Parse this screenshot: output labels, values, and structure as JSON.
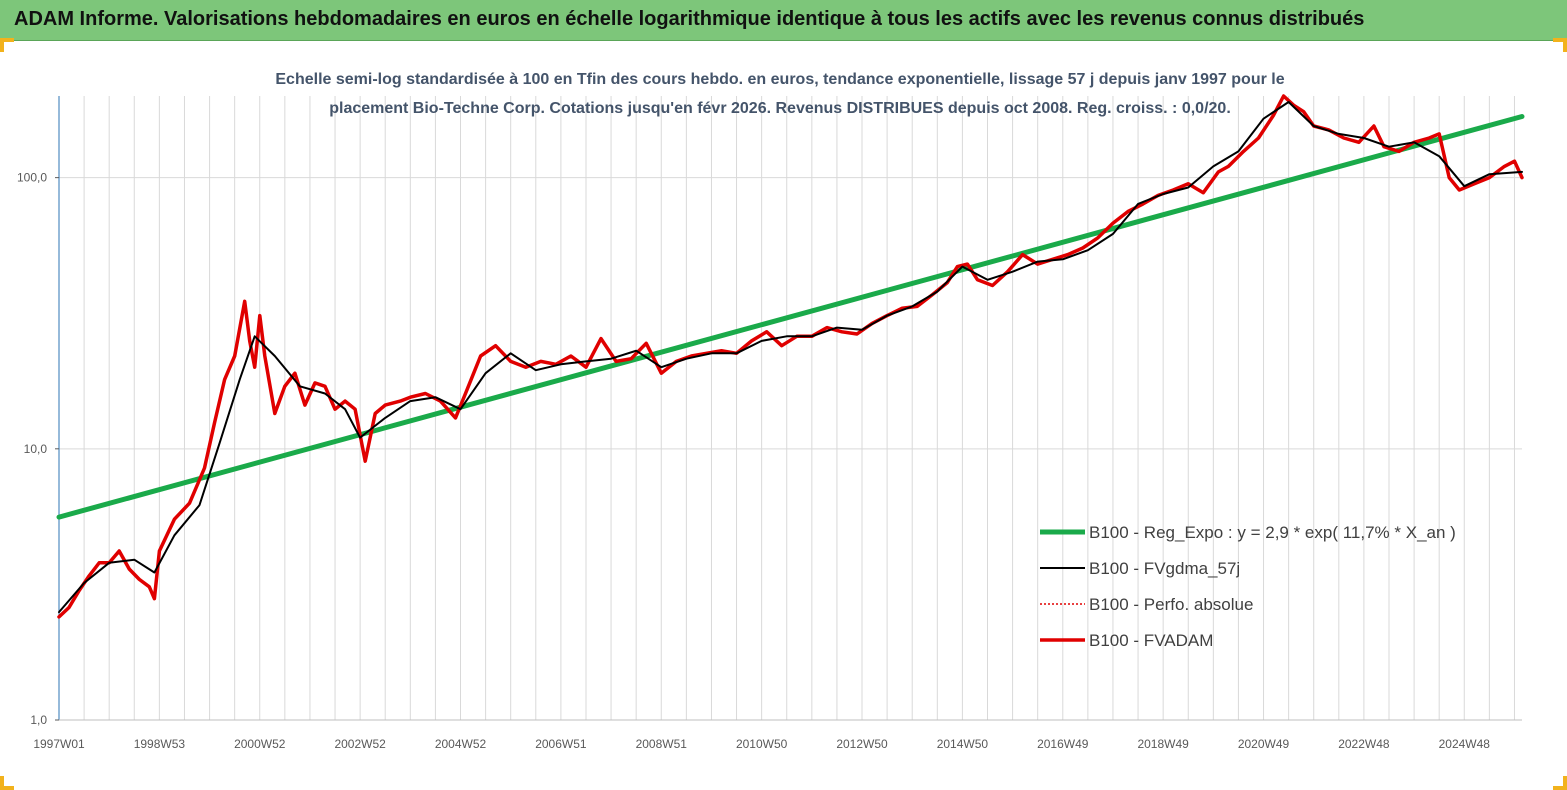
{
  "header": {
    "title": "ADAM Informe. Valorisations hebdomadaires en euros en échelle logarithmique identique à tous les actifs avec les revenus connus distribués"
  },
  "colors": {
    "header_bg": "#7dc67a",
    "corner_accent": "#f2b21c",
    "regression": "#1aaa4a",
    "fvgdma": "#000000",
    "perfo": "#e00000",
    "fvadam": "#e00000"
  },
  "chart_data": {
    "type": "line",
    "title_lines": [
      "Echelle semi-log standardisée à 100 en Tfin des cours hebdo. en euros, tendance exponentielle, lissage 57 j depuis janv 1997 pour le",
      "placement Bio-Techne Corp. Cotations jusqu'en févr 2026. Revenus DISTRIBUES depuis oct 2008. Reg. croiss. : 0,0/20."
    ],
    "y_scale": "log",
    "ylim": [
      1,
      200
    ],
    "y_ticks": [
      {
        "value": 1,
        "label": "1,0"
      },
      {
        "value": 10,
        "label": "10,0"
      },
      {
        "value": 100,
        "label": "100,0"
      }
    ],
    "xlim": [
      1997.0,
      2026.15
    ],
    "x_ticks": [
      {
        "value": 1997.0,
        "label": "1997W01"
      },
      {
        "value": 1999.0,
        "label": "1998W53"
      },
      {
        "value": 2001.0,
        "label": "2000W52"
      },
      {
        "value": 2003.0,
        "label": "2002W52"
      },
      {
        "value": 2005.0,
        "label": "2004W52"
      },
      {
        "value": 2007.0,
        "label": "2006W51"
      },
      {
        "value": 2009.0,
        "label": "2008W51"
      },
      {
        "value": 2011.0,
        "label": "2010W50"
      },
      {
        "value": 2013.0,
        "label": "2012W50"
      },
      {
        "value": 2015.0,
        "label": "2014W50"
      },
      {
        "value": 2017.0,
        "label": "2016W49"
      },
      {
        "value": 2019.0,
        "label": "2018W49"
      },
      {
        "value": 2021.0,
        "label": "2020W49"
      },
      {
        "value": 2023.0,
        "label": "2022W48"
      },
      {
        "value": 2025.0,
        "label": "2024W48"
      }
    ],
    "grid": "vertical",
    "legend_position": "right-center",
    "series": [
      {
        "name": "B100 - Reg_Expo : y = 2,9 * exp( 11,7% *  X_an )",
        "key": "reg",
        "style": "thick-green",
        "x": [
          1997.0,
          2026.15
        ],
        "y": [
          5.6,
          168
        ]
      },
      {
        "name": "B100 - FVgdma_57j",
        "key": "fvgdma",
        "style": "thin-black",
        "x": [
          1997.0,
          1997.5,
          1998.0,
          1998.5,
          1998.9,
          1999.3,
          1999.8,
          2000.2,
          2000.6,
          2000.9,
          2001.3,
          2001.8,
          2002.3,
          2002.7,
          2003.0,
          2003.5,
          2004.0,
          2004.5,
          2005.0,
          2005.5,
          2006.0,
          2006.5,
          2007.0,
          2007.5,
          2008.0,
          2008.5,
          2009.0,
          2009.5,
          2010.0,
          2010.5,
          2011.0,
          2011.5,
          2012.0,
          2012.5,
          2013.0,
          2013.5,
          2014.0,
          2014.5,
          2015.0,
          2015.5,
          2016.0,
          2016.5,
          2017.0,
          2017.5,
          2018.0,
          2018.5,
          2019.0,
          2019.5,
          2020.0,
          2020.5,
          2021.0,
          2021.5,
          2022.0,
          2022.5,
          2023.0,
          2023.5,
          2024.0,
          2024.5,
          2025.0,
          2025.5,
          2026.15
        ],
        "y": [
          2.5,
          3.2,
          3.8,
          3.9,
          3.5,
          4.8,
          6.2,
          10.5,
          18,
          26,
          22,
          17,
          16,
          14,
          11,
          13,
          15,
          15.5,
          14,
          19,
          22.5,
          19.5,
          20.5,
          21,
          21.5,
          23,
          20,
          21.5,
          22.5,
          22.5,
          25,
          26,
          26,
          28,
          27.5,
          31,
          33.5,
          38,
          47,
          42,
          45,
          49,
          50,
          54,
          62,
          80,
          87,
          92,
          110,
          125,
          165,
          190,
          155,
          145,
          140,
          130,
          135,
          120,
          93,
          103,
          105
        ]
      },
      {
        "name": "B100 - Perfo. absolue",
        "key": "perfo",
        "style": "dotted-red",
        "x": [],
        "y": []
      },
      {
        "name": "B100 - FVADAM",
        "key": "fvadam",
        "style": "thick-red",
        "x": [
          1997.0,
          1997.2,
          1997.4,
          1997.6,
          1997.8,
          1998.0,
          1998.2,
          1998.4,
          1998.6,
          1998.8,
          1998.9,
          1999.0,
          1999.3,
          1999.6,
          1999.9,
          2000.1,
          2000.3,
          2000.5,
          2000.7,
          2000.8,
          2000.9,
          2001.0,
          2001.1,
          2001.3,
          2001.5,
          2001.7,
          2001.9,
          2002.1,
          2002.3,
          2002.5,
          2002.7,
          2002.9,
          2003.1,
          2003.3,
          2003.5,
          2003.8,
          2004.0,
          2004.3,
          2004.6,
          2004.9,
          2005.1,
          2005.4,
          2005.7,
          2006.0,
          2006.3,
          2006.6,
          2006.9,
          2007.2,
          2007.5,
          2007.8,
          2008.1,
          2008.4,
          2008.7,
          2009.0,
          2009.3,
          2009.6,
          2009.9,
          2010.2,
          2010.5,
          2010.8,
          2011.1,
          2011.4,
          2011.7,
          2012.0,
          2012.3,
          2012.6,
          2012.9,
          2013.2,
          2013.5,
          2013.8,
          2014.1,
          2014.4,
          2014.7,
          2014.9,
          2015.1,
          2015.3,
          2015.6,
          2015.9,
          2016.2,
          2016.5,
          2016.8,
          2017.1,
          2017.4,
          2017.7,
          2018.0,
          2018.3,
          2018.6,
          2018.9,
          2019.2,
          2019.5,
          2019.8,
          2020.1,
          2020.3,
          2020.6,
          2020.9,
          2021.2,
          2021.4,
          2021.6,
          2021.8,
          2022.0,
          2022.3,
          2022.6,
          2022.9,
          2023.2,
          2023.4,
          2023.7,
          2024.0,
          2024.3,
          2024.5,
          2024.7,
          2024.9,
          2025.2,
          2025.5,
          2025.8,
          2026.0,
          2026.15
        ],
        "y": [
          2.4,
          2.6,
          3.0,
          3.4,
          3.8,
          3.8,
          4.2,
          3.6,
          3.3,
          3.1,
          2.8,
          4.2,
          5.5,
          6.3,
          8.5,
          12.5,
          18,
          22,
          35,
          25,
          20,
          31,
          22,
          13.5,
          17,
          19,
          14.5,
          17.5,
          17,
          14,
          15,
          14,
          9,
          13.5,
          14.5,
          15,
          15.5,
          16,
          15,
          13,
          16,
          22,
          24,
          21,
          20,
          21,
          20.5,
          22,
          20,
          25.5,
          21,
          21.5,
          24.5,
          19,
          21,
          22,
          22.5,
          23,
          22.5,
          25,
          27,
          24,
          26,
          26,
          28,
          27,
          26.5,
          29,
          31,
          33,
          33.5,
          37,
          41,
          47,
          48,
          42,
          40,
          45,
          52,
          48,
          50,
          52,
          55,
          60,
          68,
          75,
          80,
          86,
          90,
          95,
          88,
          105,
          110,
          125,
          140,
          170,
          200,
          185,
          175,
          155,
          150,
          140,
          135,
          155,
          130,
          125,
          135,
          140,
          145,
          100,
          90,
          95,
          100,
          110,
          115,
          100
        ]
      }
    ]
  }
}
